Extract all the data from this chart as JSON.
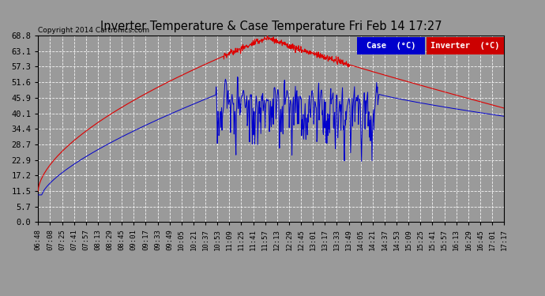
{
  "title": "Inverter Temperature & Case Temperature Fri Feb 14 17:27",
  "copyright": "Copyright 2014 Cartronics.com",
  "yticks": [
    0.0,
    5.7,
    11.5,
    17.2,
    22.9,
    28.7,
    34.4,
    40.1,
    45.9,
    51.6,
    57.3,
    63.1,
    68.8
  ],
  "ylim": [
    0.0,
    68.8
  ],
  "xtick_labels": [
    "06:48",
    "07:08",
    "07:25",
    "07:41",
    "07:57",
    "08:13",
    "08:29",
    "08:45",
    "09:01",
    "09:17",
    "09:33",
    "09:49",
    "10:05",
    "10:21",
    "10:37",
    "10:53",
    "11:09",
    "11:25",
    "11:41",
    "11:57",
    "12:13",
    "12:29",
    "12:45",
    "13:01",
    "13:17",
    "13:33",
    "13:49",
    "14:05",
    "14:21",
    "14:37",
    "14:53",
    "15:09",
    "15:25",
    "15:41",
    "15:57",
    "16:13",
    "16:29",
    "16:45",
    "17:01",
    "17:17"
  ],
  "bg_color": "#9a9a9a",
  "plot_bg_color": "#9a9a9a",
  "grid_color": "#ffffff",
  "case_color": "#0000cc",
  "inverter_color": "#dd0000",
  "legend_case_bg": "#0000cc",
  "legend_inverter_bg": "#cc0000",
  "title_color": "#000000",
  "copyright_color": "#000000"
}
